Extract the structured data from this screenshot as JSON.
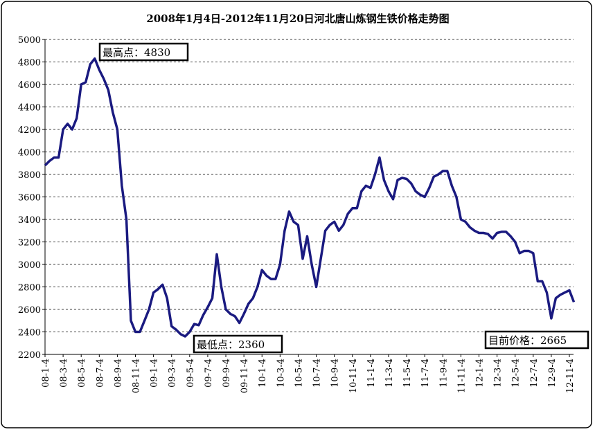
{
  "chart_data": {
    "type": "line",
    "title": "2008年1月4日-2012年11月20日河北唐山炼钢生铁价格走势图",
    "categories": [
      "08-1-4",
      null,
      null,
      null,
      "08-3-4",
      null,
      null,
      null,
      "08-5-4",
      null,
      null,
      null,
      "08-7-4",
      null,
      null,
      null,
      "08-9-4",
      null,
      null,
      null,
      "08-11-4",
      null,
      null,
      null,
      "09-1-4",
      null,
      null,
      null,
      "09-3-4",
      null,
      null,
      null,
      "09-5-4",
      null,
      null,
      null,
      "09-7-4",
      null,
      null,
      null,
      "09-9-4",
      null,
      null,
      null,
      "09-11-4",
      null,
      null,
      null,
      "10-1-4",
      null,
      null,
      null,
      "10-3-4",
      null,
      null,
      null,
      "10-5-4",
      null,
      null,
      null,
      "10-7-4",
      null,
      null,
      null,
      "10-9-4",
      null,
      null,
      null,
      "10-11-4",
      null,
      null,
      null,
      "11-1-4",
      null,
      null,
      null,
      "11-3-4",
      null,
      null,
      null,
      "11-5-4",
      null,
      null,
      null,
      "11-7-4",
      null,
      null,
      null,
      "11-9-4",
      null,
      null,
      null,
      "11-11-4",
      null,
      null,
      null,
      "12-1-4",
      null,
      null,
      null,
      "12-3-4",
      null,
      null,
      null,
      "12-5-4",
      null,
      null,
      null,
      "12-7-4",
      null,
      null,
      null,
      "12-9-4",
      null,
      null,
      null,
      "12-11-4",
      null
    ],
    "series": [
      {
        "color": "#1a1a80",
        "values": [
          3880,
          3920,
          3950,
          3950,
          4200,
          4250,
          4200,
          4300,
          4600,
          4620,
          4780,
          4830,
          4730,
          4650,
          4550,
          4350,
          4200,
          3700,
          3400,
          2500,
          2400,
          2400,
          2500,
          2600,
          2750,
          2780,
          2820,
          2700,
          2450,
          2420,
          2380,
          2360,
          2400,
          2470,
          2460,
          2550,
          2620,
          2700,
          3090,
          2800,
          2600,
          2560,
          2540,
          2480,
          2560,
          2650,
          2700,
          2800,
          2950,
          2900,
          2870,
          2870,
          3000,
          3300,
          3470,
          3380,
          3350,
          3050,
          3250,
          3000,
          2800,
          3050,
          3300,
          3350,
          3380,
          3300,
          3350,
          3450,
          3500,
          3500,
          3650,
          3700,
          3680,
          3800,
          3950,
          3750,
          3650,
          3580,
          3750,
          3770,
          3760,
          3720,
          3650,
          3620,
          3600,
          3680,
          3780,
          3800,
          3830,
          3830,
          3700,
          3600,
          3400,
          3380,
          3330,
          3300,
          3280,
          3280,
          3270,
          3230,
          3280,
          3290,
          3290,
          3250,
          3200,
          3100,
          3120,
          3120,
          3100,
          2850,
          2850,
          2750,
          2520,
          2700,
          2730,
          2750,
          2770,
          2665
        ]
      }
    ],
    "ylim": [
      2200,
      5000
    ],
    "yticks": [
      2200,
      2400,
      2600,
      2800,
      3000,
      3200,
      3400,
      3600,
      3800,
      4000,
      4200,
      4400,
      4600,
      4800,
      5000
    ],
    "grid": true,
    "annotations": [
      "最高点：4830",
      "最低点：2360",
      "目前价格：2665"
    ]
  }
}
